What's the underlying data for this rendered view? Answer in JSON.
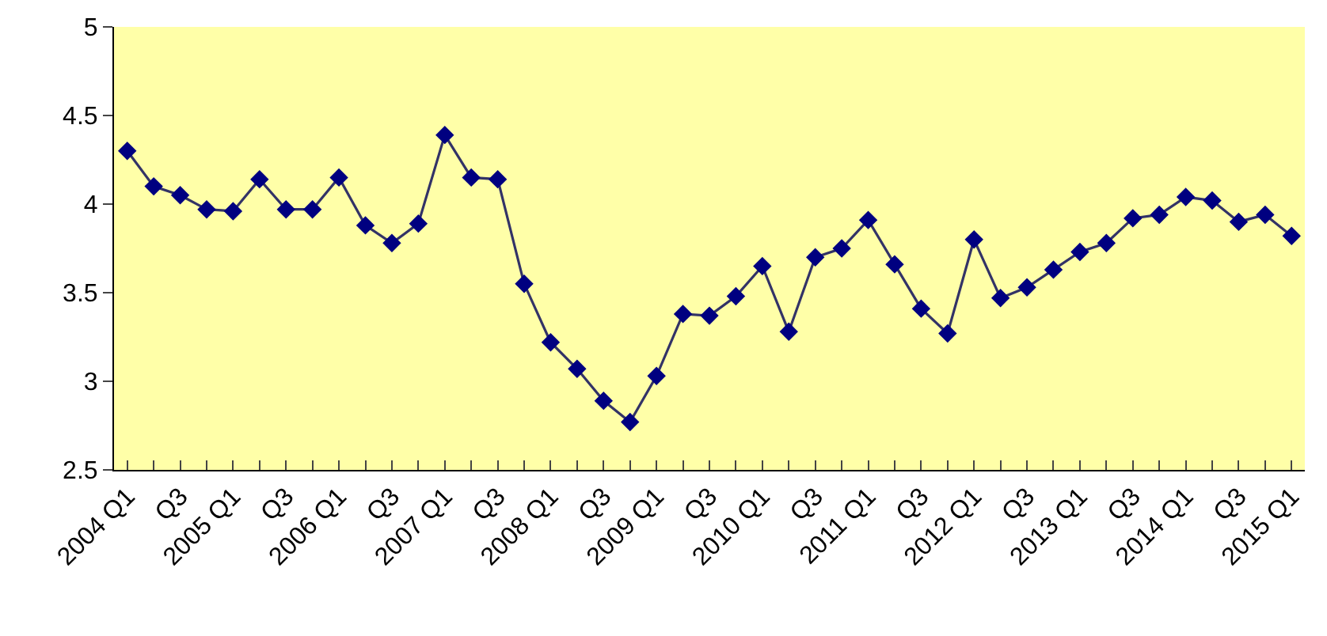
{
  "chart_data": {
    "type": "line",
    "categories": [
      "2004 Q1",
      null,
      "Q3",
      null,
      "2005 Q1",
      null,
      "Q3",
      null,
      "2006 Q1",
      null,
      "Q3",
      null,
      "2007 Q1",
      null,
      "Q3",
      null,
      "2008 Q1",
      null,
      "Q3",
      null,
      "2009 Q1",
      null,
      "Q3",
      null,
      "2010 Q1",
      null,
      "Q3",
      null,
      "2011 Q1",
      null,
      "Q3",
      null,
      "2012 Q1",
      null,
      "Q3",
      null,
      "2013 Q1",
      null,
      "Q3",
      null,
      "2014 Q1",
      null,
      "Q3",
      null,
      "2015 Q1"
    ],
    "series": [
      {
        "color": "#000080",
        "values": [
          4.3,
          4.1,
          4.05,
          3.97,
          3.96,
          4.14,
          3.97,
          3.97,
          4.15,
          3.88,
          3.78,
          3.89,
          4.39,
          4.15,
          4.14,
          3.55,
          3.22,
          3.07,
          2.89,
          2.77,
          3.03,
          3.38,
          3.37,
          3.48,
          3.65,
          3.28,
          3.7,
          3.75,
          3.91,
          3.66,
          3.41,
          3.27,
          3.8,
          3.47,
          3.53,
          3.63,
          3.73,
          3.78,
          3.92,
          3.94,
          4.04,
          4.02,
          3.9,
          3.94,
          3.82
        ]
      }
    ],
    "ylim": [
      2.5,
      5
    ],
    "yticks": [
      2.5,
      3,
      3.5,
      4,
      4.5,
      5
    ],
    "marker": "diamond",
    "line_style": "solid",
    "grid": false,
    "legend": false
  }
}
